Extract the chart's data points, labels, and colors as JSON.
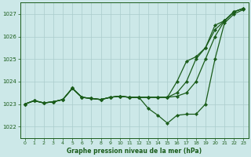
{
  "xlabel": "Graphe pression niveau de la mer (hPa)",
  "bg_color": "#cce8e8",
  "grid_color": "#aacccc",
  "line_color": "#1a5c1a",
  "xlim": [
    -0.5,
    23.5
  ],
  "ylim": [
    1021.5,
    1027.5
  ],
  "yticks": [
    1022,
    1023,
    1024,
    1025,
    1026,
    1027
  ],
  "xticks": [
    0,
    1,
    2,
    3,
    4,
    5,
    6,
    7,
    8,
    9,
    10,
    11,
    12,
    13,
    14,
    15,
    16,
    17,
    18,
    19,
    20,
    21,
    22,
    23
  ],
  "series1": [
    1023.0,
    1023.15,
    1023.05,
    1023.1,
    1023.2,
    1023.7,
    1023.3,
    1023.25,
    1023.2,
    1023.3,
    1023.35,
    1023.3,
    1023.3,
    1022.8,
    1022.5,
    1022.15,
    1022.5,
    1022.55,
    1022.55,
    1023.0,
    1025.0,
    1026.6,
    1027.0,
    1027.2
  ],
  "series2": [
    1023.0,
    1023.15,
    1023.05,
    1023.1,
    1023.2,
    1023.7,
    1023.3,
    1023.25,
    1023.2,
    1023.3,
    1023.35,
    1023.3,
    1023.3,
    1023.3,
    1023.3,
    1023.3,
    1023.35,
    1023.5,
    1024.0,
    1025.0,
    1026.0,
    1026.7,
    1027.1,
    1027.25
  ],
  "series3": [
    1023.0,
    1023.15,
    1023.05,
    1023.1,
    1023.2,
    1023.7,
    1023.3,
    1023.25,
    1023.2,
    1023.3,
    1023.35,
    1023.3,
    1023.3,
    1023.3,
    1023.3,
    1023.3,
    1024.0,
    1024.9,
    1025.1,
    1025.5,
    1026.3,
    1026.7,
    1027.1,
    1027.25
  ],
  "series4": [
    1023.0,
    1023.15,
    1023.05,
    1023.1,
    1023.2,
    1023.7,
    1023.3,
    1023.25,
    1023.2,
    1023.3,
    1023.35,
    1023.3,
    1023.3,
    1023.3,
    1023.3,
    1023.3,
    1023.5,
    1024.0,
    1025.0,
    1025.5,
    1026.5,
    1026.7,
    1027.1,
    1027.25
  ]
}
